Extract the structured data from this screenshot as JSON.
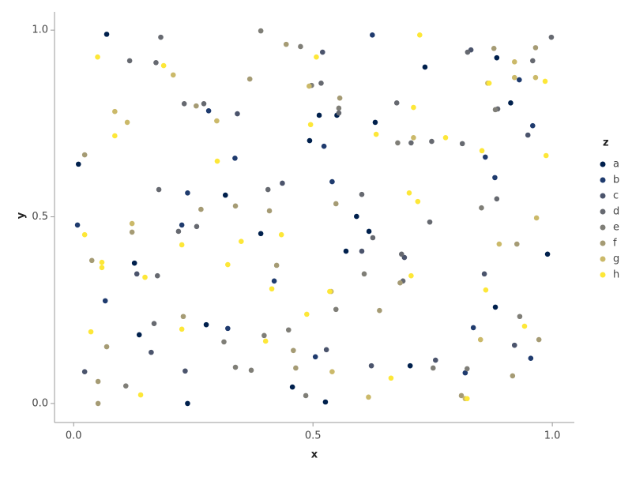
{
  "chart_data": {
    "type": "scatter",
    "x_label": "x",
    "y_label": "y",
    "legend_title": "z",
    "legend_position": "right",
    "xlim": [
      -0.04,
      1.046
    ],
    "ylim": [
      -0.051,
      1.049
    ],
    "xticks": [
      {
        "value": 0,
        "label": "0.0"
      },
      0.5,
      {
        "value": 1,
        "label": "1.0"
      }
    ],
    "yticks": [
      {
        "value": 0,
        "label": "0.0"
      },
      0.5,
      {
        "value": 1,
        "label": "1.0"
      }
    ],
    "series": [
      {
        "name": "a",
        "color": "#00204d",
        "x": [
          0.069,
          0.01,
          0.317,
          0.391,
          0.127,
          0.137,
          0.277,
          0.238,
          0.457,
          0.526,
          0.569,
          0.591,
          0.734,
          0.493,
          0.513,
          0.55,
          0.617,
          0.63,
          0.703,
          0.884,
          0.913,
          0.99,
          0.881
        ],
        "y": [
          0.989,
          0.641,
          0.558,
          0.455,
          0.376,
          0.184,
          0.211,
          0,
          0.044,
          0.004,
          0.408,
          0.501,
          0.901,
          0.704,
          0.772,
          0.772,
          0.461,
          0.753,
          0.101,
          0.926,
          0.805,
          0.4,
          0.258
        ]
      },
      {
        "name": "b",
        "color": "#1f3b6e",
        "x": [
          0.624,
          0.008,
          0.066,
          0.238,
          0.226,
          0.322,
          0.337,
          0.419,
          0.523,
          0.54,
          0.818,
          0.835,
          0.86,
          0.88,
          0.282,
          0.931,
          0.959,
          0.955,
          0.505
        ],
        "y": [
          0.987,
          0.478,
          0.275,
          0.564,
          0.478,
          0.201,
          0.657,
          0.328,
          0.689,
          0.594,
          0.082,
          0.203,
          0.66,
          0.605,
          0.784,
          0.867,
          0.744,
          0.121,
          0.125
        ]
      },
      {
        "name": "c",
        "color": "#4b546c",
        "x": [
          0.023,
          0.132,
          0.162,
          0.233,
          0.342,
          0.528,
          0.622,
          0.691,
          0.756,
          0.858,
          0.921,
          0.949,
          0.436,
          0.602,
          0.52,
          0.83
        ],
        "y": [
          0.085,
          0.347,
          0.137,
          0.087,
          0.776,
          0.144,
          0.101,
          0.391,
          0.116,
          0.347,
          0.156,
          0.719,
          0.59,
          0.408,
          0.941,
          0.947
        ]
      },
      {
        "name": "d",
        "color": "#666970",
        "x": [
          0.182,
          0.117,
          0.172,
          0.231,
          0.272,
          0.178,
          0.175,
          0.257,
          0.219,
          0.517,
          0.406,
          0.554,
          0.602,
          0.675,
          0.705,
          0.748,
          0.812,
          0.998,
          0.959,
          0.823,
          0.886,
          0.884,
          0.685,
          0.688,
          0.744,
          0.625,
          0.168
        ],
        "y": [
          0.981,
          0.918,
          0.913,
          0.803,
          0.803,
          0.573,
          0.342,
          0.474,
          0.461,
          0.858,
          0.573,
          0.778,
          0.56,
          0.805,
          0.698,
          0.702,
          0.696,
          0.981,
          0.918,
          0.941,
          0.789,
          0.548,
          0.4,
          0.328,
          0.486,
          0.444,
          0.214
        ]
      },
      {
        "name": "e",
        "color": "#7f7e77",
        "x": [
          0.391,
          0.109,
          0.314,
          0.338,
          0.371,
          0.398,
          0.474,
          0.497,
          0.449,
          0.485,
          0.554,
          0.607,
          0.822,
          0.932,
          0.852,
          0.881,
          0.677,
          0.548,
          0.751
        ],
        "y": [
          0.998,
          0.047,
          0.165,
          0.097,
          0.089,
          0.182,
          0.956,
          0.852,
          0.197,
          0.021,
          0.791,
          0.347,
          0.093,
          0.233,
          0.524,
          0.787,
          0.698,
          0.252,
          0.095
        ]
      },
      {
        "name": "f",
        "color": "#a59b74",
        "x": [
          0.023,
          0.038,
          0.069,
          0.122,
          0.051,
          0.051,
          0.229,
          0.256,
          0.266,
          0.338,
          0.368,
          0.444,
          0.409,
          0.424,
          0.464,
          0.459,
          0.639,
          0.556,
          0.548,
          0.682,
          0.81,
          0.878,
          0.965,
          0.917,
          0.972,
          0.926
        ],
        "y": [
          0.666,
          0.383,
          0.152,
          0.459,
          0.059,
          0.0,
          0.233,
          0.797,
          0.52,
          0.529,
          0.869,
          0.962,
          0.516,
          0.37,
          0.095,
          0.142,
          0.249,
          0.818,
          0.535,
          0.323,
          0.021,
          0.951,
          0.953,
          0.074,
          0.171,
          0.427
        ]
      },
      {
        "name": "g",
        "color": "#cbb969",
        "x": [
          0.086,
          0.112,
          0.208,
          0.299,
          0.492,
          0.71,
          0.85,
          0.921,
          0.921,
          0.965,
          0.967,
          0.54,
          0.538,
          0.616,
          0.818,
          0.889,
          0.865,
          0.122
        ],
        "y": [
          0.782,
          0.753,
          0.88,
          0.757,
          0.85,
          0.712,
          0.171,
          0.915,
          0.873,
          0.873,
          0.497,
          0.085,
          0.3,
          0.017,
          0.013,
          0.427,
          0.858,
          0.482
        ]
      },
      {
        "name": "h",
        "color": "#fde738",
        "x": [
          0.05,
          0.188,
          0.086,
          0.023,
          0.059,
          0.059,
          0.149,
          0.14,
          0.036,
          0.226,
          0.226,
          0.3,
          0.322,
          0.35,
          0.495,
          0.401,
          0.414,
          0.434,
          0.487,
          0.507,
          0.535,
          0.632,
          0.663,
          0.723,
          0.71,
          0.701,
          0.719,
          0.705,
          0.777,
          0.853,
          0.822,
          0.868,
          0.861,
          0.942,
          0.985,
          0.987
        ],
        "y": [
          0.928,
          0.905,
          0.717,
          0.452,
          0.378,
          0.364,
          0.338,
          0.023,
          0.192,
          0.425,
          0.199,
          0.649,
          0.372,
          0.434,
          0.747,
          0.167,
          0.307,
          0.452,
          0.239,
          0.928,
          0.3,
          0.721,
          0.068,
          0.987,
          0.793,
          0.564,
          0.541,
          0.342,
          0.712,
          0.677,
          0.013,
          0.858,
          0.304,
          0.207,
          0.863,
          0.664
        ]
      }
    ]
  }
}
